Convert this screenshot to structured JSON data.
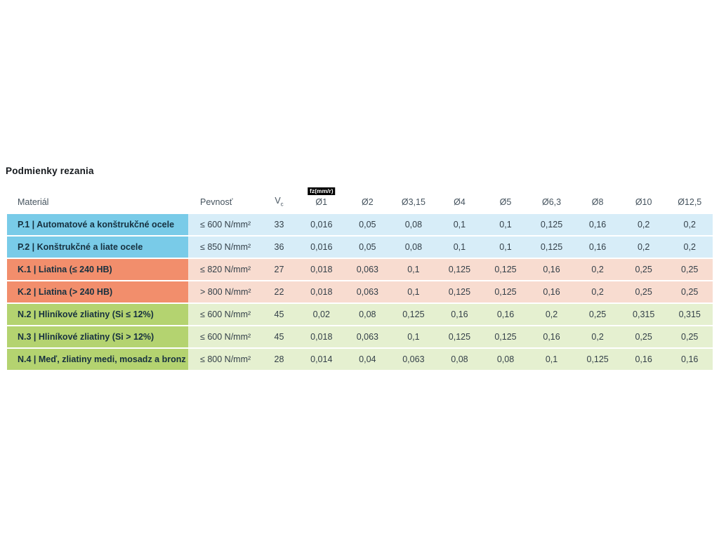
{
  "page": {
    "title": "Podmienky rezania",
    "background": "#ffffff"
  },
  "table": {
    "headers": {
      "material": "Materiál",
      "strength": "Pevnosť",
      "vc_main": "V",
      "vc_sub": "c",
      "fz_badge": "fz(mm/r)",
      "diameters": [
        "Ø1",
        "Ø2",
        "Ø3,15",
        "Ø4",
        "Ø5",
        "Ø6,3",
        "Ø8",
        "Ø10",
        "Ø12,5"
      ]
    },
    "group_colors": {
      "P": {
        "label_bg": "#79cbe8",
        "cell_bg": "#d7edf8"
      },
      "K": {
        "label_bg": "#f28e6c",
        "cell_bg": "#f8dcd0"
      },
      "N": {
        "label_bg": "#b4d370",
        "cell_bg": "#e5f0d0"
      }
    },
    "rows": [
      {
        "group": "P",
        "material": "P.1 | Automatové a konštrukčné ocele",
        "strength": "≤ 600 N/mm²",
        "vc": "33",
        "feeds": [
          "0,016",
          "0,05",
          "0,08",
          "0,1",
          "0,1",
          "0,125",
          "0,16",
          "0,2",
          "0,2"
        ]
      },
      {
        "group": "P",
        "material": "P.2 | Konštrukčné a liate ocele",
        "strength": "≤ 850 N/mm²",
        "vc": "36",
        "feeds": [
          "0,016",
          "0,05",
          "0,08",
          "0,1",
          "0,1",
          "0,125",
          "0,16",
          "0,2",
          "0,2"
        ]
      },
      {
        "group": "K",
        "material": "K.1 | Liatina (≤ 240 HB)",
        "strength": "≤ 820 N/mm²",
        "vc": "27",
        "feeds": [
          "0,018",
          "0,063",
          "0,1",
          "0,125",
          "0,125",
          "0,16",
          "0,2",
          "0,25",
          "0,25"
        ]
      },
      {
        "group": "K",
        "material": "K.2 | Liatina (> 240 HB)",
        "strength": "> 800 N/mm²",
        "vc": "22",
        "feeds": [
          "0,018",
          "0,063",
          "0,1",
          "0,125",
          "0,125",
          "0,16",
          "0,2",
          "0,25",
          "0,25"
        ]
      },
      {
        "group": "N",
        "material": "N.2 | Hliníkové zliatiny (Si ≤ 12%)",
        "strength": "≤ 600 N/mm²",
        "vc": "45",
        "feeds": [
          "0,02",
          "0,08",
          "0,125",
          "0,16",
          "0,16",
          "0,2",
          "0,25",
          "0,315",
          "0,315"
        ]
      },
      {
        "group": "N",
        "material": "N.3 | Hliníkové zliatiny (Si > 12%)",
        "strength": "≤ 600 N/mm²",
        "vc": "45",
        "feeds": [
          "0,018",
          "0,063",
          "0,1",
          "0,125",
          "0,125",
          "0,16",
          "0,2",
          "0,25",
          "0,25"
        ]
      },
      {
        "group": "N",
        "material": "N.4 | Meď, zliatiny medi, mosadz a bronz",
        "strength": "≤ 800 N/mm²",
        "vc": "28",
        "feeds": [
          "0,014",
          "0,04",
          "0,063",
          "0,08",
          "0,08",
          "0,1",
          "0,125",
          "0,16",
          "0,16"
        ]
      }
    ]
  }
}
